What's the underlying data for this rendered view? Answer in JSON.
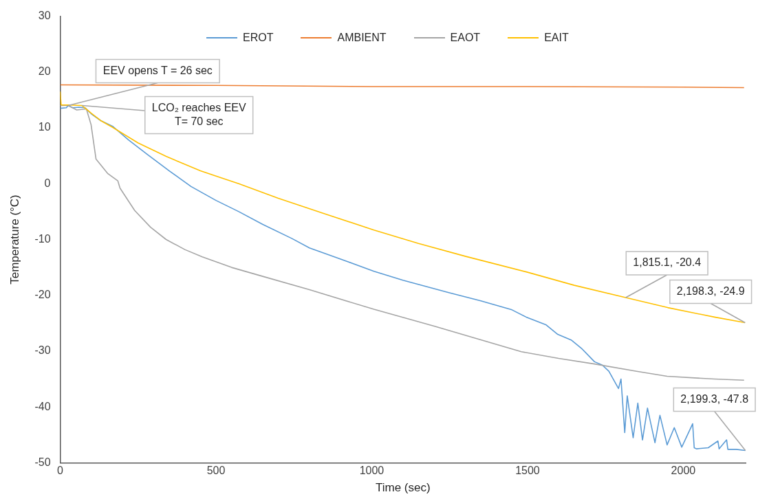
{
  "chart_data": {
    "type": "line",
    "xlabel": "Time (sec)",
    "ylabel": "Temperature (°C)",
    "xlim": [
      0,
      2200
    ],
    "xticks": [
      0,
      500,
      1000,
      1500,
      2000
    ],
    "ylim": [
      -50,
      30
    ],
    "yticks": [
      -50,
      -40,
      -30,
      -20,
      -10,
      0,
      10,
      20,
      30
    ],
    "legend": "top",
    "marker": "none",
    "series": [
      {
        "name": "EROT",
        "color": "#5b9bd5",
        "x": [
          0,
          20,
          25,
          40,
          60,
          80,
          100,
          130,
          168,
          220,
          278,
          350,
          420,
          500,
          573,
          650,
          743,
          800,
          900,
          1007,
          1100,
          1247,
          1350,
          1450,
          1496,
          1560,
          1597,
          1640,
          1675,
          1715,
          1740,
          1761,
          1792,
          1800,
          1812,
          1820,
          1839,
          1854,
          1869,
          1885,
          1909,
          1925,
          1948,
          1971,
          1995,
          2030,
          2035,
          2042,
          2080,
          2111,
          2115,
          2139,
          2143,
          2170,
          2199.3
        ],
        "values": [
          13.5,
          13.6,
          14,
          13.6,
          13.7,
          13.6,
          12.5,
          11.3,
          10.3,
          7.8,
          5.3,
          2.3,
          -0.5,
          -3,
          -5,
          -7.3,
          -9.8,
          -11.5,
          -13.5,
          -15.7,
          -17.3,
          -19.5,
          -21,
          -22.6,
          -23.9,
          -25.3,
          -27,
          -28,
          -29.6,
          -31.9,
          -32.5,
          -33.6,
          -36.7,
          -35,
          -44.6,
          -38,
          -45.5,
          -39.3,
          -45.9,
          -40.2,
          -46.4,
          -41.5,
          -46.8,
          -43.7,
          -47.2,
          -43,
          -47.3,
          -47.5,
          -47.3,
          -46.1,
          -47.5,
          -45.9,
          -47.6,
          -47.6,
          -47.8
        ]
      },
      {
        "name": "AMBIENT",
        "color": "#ed7d31",
        "x": [
          0,
          500,
          1000,
          1500,
          2000,
          2195
        ],
        "values": [
          17.7,
          17.6,
          17.4,
          17.4,
          17.3,
          17.2
        ]
      },
      {
        "name": "EAOT",
        "color": "#a5a5a5",
        "x": [
          0,
          26,
          53,
          84,
          99,
          115,
          153,
          185,
          192,
          239,
          290,
          340,
          400,
          456,
          550,
          650,
          800,
          1007,
          1200,
          1480,
          1600,
          1715,
          1850,
          1948,
          2100,
          2195
        ],
        "values": [
          14,
          14,
          13.2,
          13.4,
          10.6,
          4.4,
          1.8,
          0.5,
          -0.8,
          -4.8,
          -7.8,
          -10,
          -11.8,
          -13.1,
          -15,
          -16.6,
          -19,
          -22.5,
          -25.5,
          -30.1,
          -31.3,
          -32.3,
          -33.6,
          -34.5,
          -35,
          -35.2
        ]
      },
      {
        "name": "EAIT",
        "color": "#ffc000",
        "x": [
          0,
          3,
          26,
          70,
          100,
          130,
          168,
          250,
          340,
          450,
          573,
          700,
          850,
          1007,
          1150,
          1300,
          1496,
          1650,
          1815.1,
          1950,
          2100,
          2198.3
        ],
        "values": [
          16.5,
          14.1,
          14.1,
          14,
          12.6,
          11.3,
          10.1,
          7.3,
          4.9,
          2.3,
          0,
          -2.6,
          -5.4,
          -8.3,
          -10.7,
          -13,
          -15.8,
          -18.2,
          -20.4,
          -22.2,
          -23.9,
          -24.9
        ]
      }
    ],
    "annotations": [
      {
        "text": "EEV opens T = 26 sec",
        "x": 26,
        "y": 14
      },
      {
        "text": "LCO₂ reaches EEV\nT= 70 sec",
        "x": 70,
        "y": 14
      },
      {
        "text": "1,815.1, -20.4",
        "x": 1815.1,
        "y": -20.4
      },
      {
        "text": "2,198.3, -24.9",
        "x": 2198.3,
        "y": -24.9
      },
      {
        "text": "2,199.3, -47.8",
        "x": 2199.3,
        "y": -47.8
      }
    ]
  }
}
